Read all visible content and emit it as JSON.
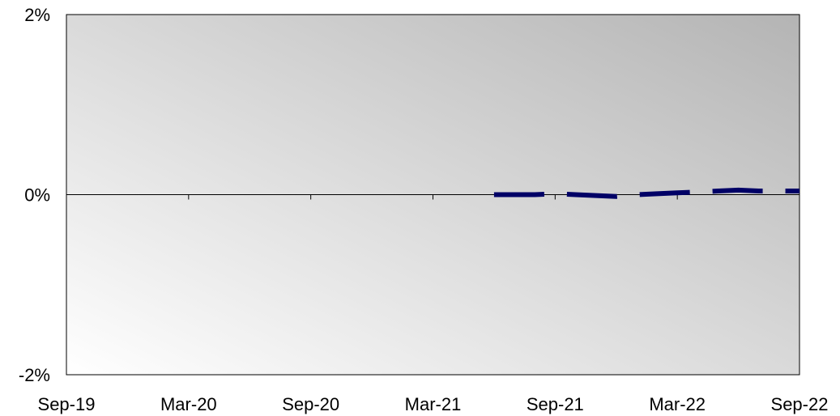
{
  "chart_data": {
    "type": "line",
    "title": "",
    "xlabel": "",
    "ylabel": "",
    "x_tick_labels": [
      "Sep-19",
      "Mar-20",
      "Sep-20",
      "Mar-21",
      "Sep-21",
      "Mar-22",
      "Sep-22"
    ],
    "y_tick_labels": [
      "2%",
      "0%",
      "-2%"
    ],
    "ylim": [
      -2,
      2
    ],
    "y_ticks": [
      2,
      0,
      -2
    ],
    "x_range": [
      "2019-09",
      "2022-09"
    ],
    "x_ticks": [
      "2019-09",
      "2020-03",
      "2020-09",
      "2021-03",
      "2021-09",
      "2022-03",
      "2022-09"
    ],
    "grid": false,
    "legend": "none",
    "series": [
      {
        "style": "dashed",
        "color": "#000066",
        "x": [
          "2021-06",
          "2021-07",
          "2021-08",
          "2021-09",
          "2021-10",
          "2021-11",
          "2021-12",
          "2022-01",
          "2022-02",
          "2022-03",
          "2022-04",
          "2022-05",
          "2022-06",
          "2022-07",
          "2022-08",
          "2022-09"
        ],
        "values": [
          0.0,
          0.0,
          0.0,
          0.01,
          0.0,
          -0.01,
          -0.02,
          0.0,
          0.01,
          0.02,
          0.03,
          0.04,
          0.05,
          0.04,
          0.04,
          0.04
        ]
      }
    ]
  },
  "colors": {
    "series_line": "#000066",
    "axis": "#000000",
    "plot_gradient_light": "#ffffff",
    "plot_gradient_dark": "#b4b4b4"
  }
}
